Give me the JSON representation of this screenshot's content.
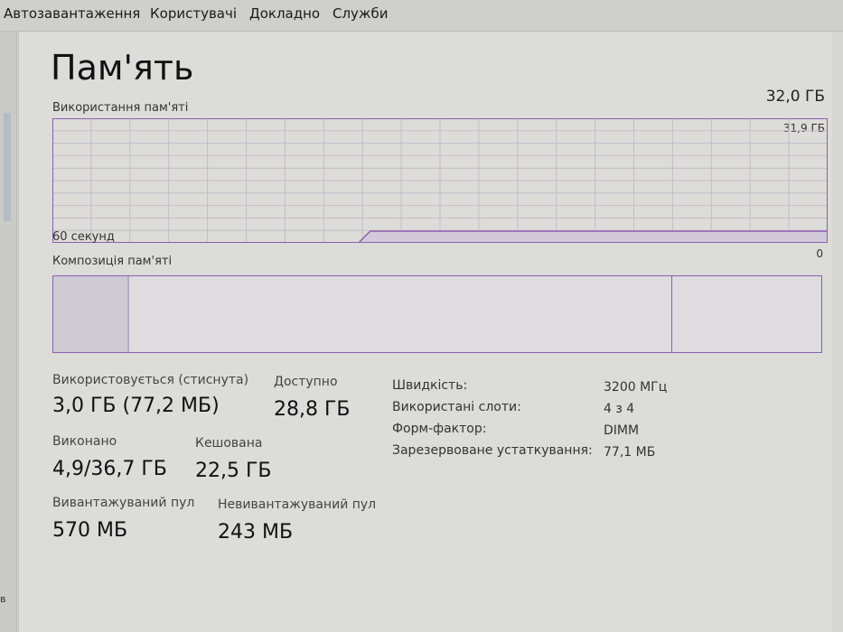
{
  "tabs": [
    "Автозавантаження",
    "Користувачі",
    "Докладно",
    "Служби"
  ],
  "title": "Пам'ять",
  "total": "32,0 ГБ",
  "usage_graph": {
    "label": "Використання пам'яті",
    "max_label": "31,9 ГБ",
    "time_label": "60 секунд",
    "min_label": "0",
    "used_fraction": 0.094,
    "color": "#8b5fb0"
  },
  "composition": {
    "label": "Композиція пам'яті"
  },
  "stats": {
    "in_use_label": "Використовується (стиснута)",
    "in_use_value": "3,0 ГБ (77,2 МБ)",
    "available_label": "Доступно",
    "available_value": "28,8 ГБ",
    "committed_label": "Виконано",
    "committed_value": "4,9/36,7 ГБ",
    "cached_label": "Кешована",
    "cached_value": "22,5 ГБ",
    "paged_label": "Вивантажуваний пул",
    "paged_value": "570 МБ",
    "nonpaged_label": "Невивантажуваний пул",
    "nonpaged_value": "243 МБ"
  },
  "info": [
    {
      "label": "Швидкість:",
      "value": "3200 МГц"
    },
    {
      "label": "Використані слоти:",
      "value": "4 з 4"
    },
    {
      "label": "Форм-фактор:",
      "value": "DIMM"
    },
    {
      "label": "Зарезервоване устаткування:",
      "value": "77,1 МБ"
    }
  ],
  "sidebar_fragment": "в"
}
